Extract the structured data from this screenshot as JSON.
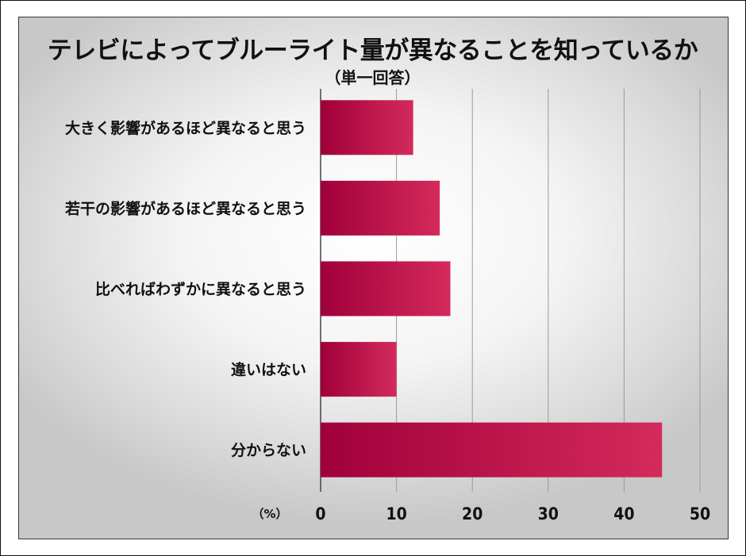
{
  "chart_data": {
    "type": "bar",
    "orientation": "horizontal",
    "title": "テレビによってブルーライト量が異なることを知っているか",
    "subtitle": "（単一回答）",
    "categories": [
      "大きく影響があるほど異なると思う",
      "若干の影響があるほど異なると思う",
      "比べればわずかに異なると思う",
      "違いはない",
      "分からない"
    ],
    "values": [
      12.2,
      15.7,
      17.1,
      10.0,
      45.0
    ],
    "xlim": [
      0,
      50
    ],
    "xticks": [
      0,
      10,
      20,
      30,
      40,
      50
    ],
    "unit_label": "（%）",
    "grid": true,
    "bar_color_dark": "#a0003a",
    "bar_color_light": "#d42a5c"
  }
}
